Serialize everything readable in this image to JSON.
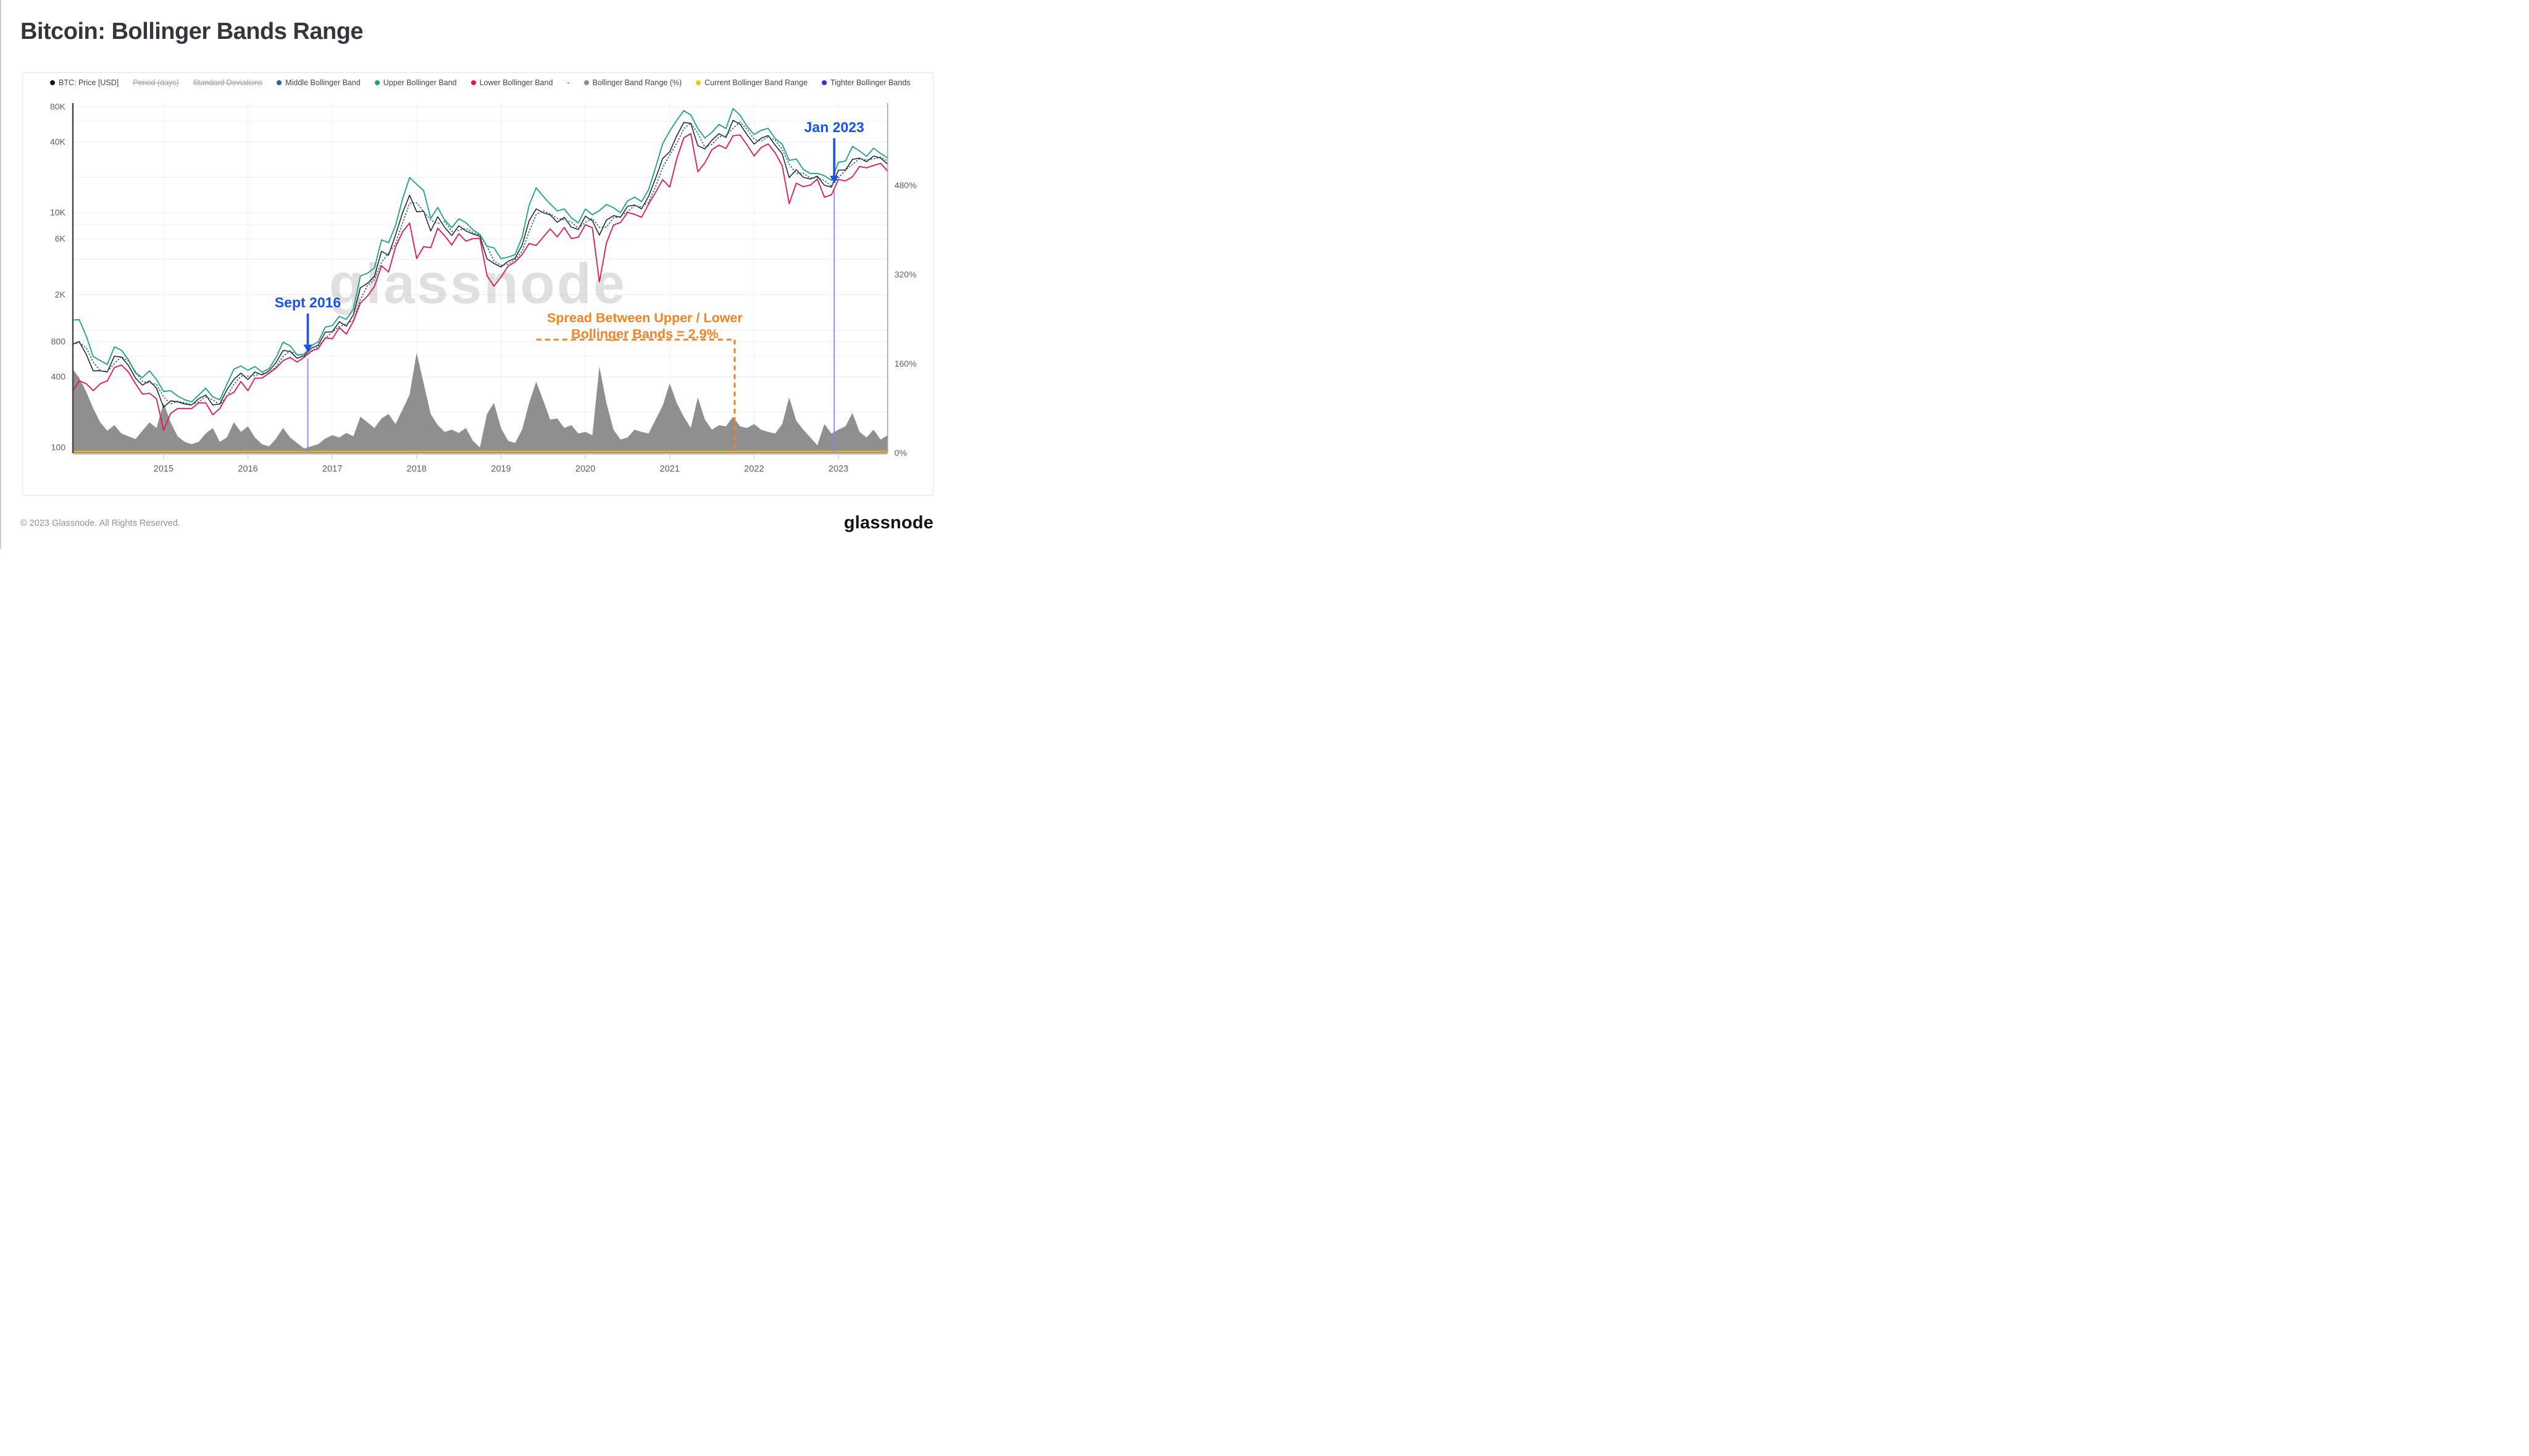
{
  "header": {
    "title": "Bitcoin: Bollinger Bands Range"
  },
  "legend": {
    "items": [
      {
        "id": "btc-price",
        "label": "BTC: Price [USD]",
        "dot": "#141414"
      },
      {
        "id": "period-days",
        "label": "Period (days)",
        "strike": true
      },
      {
        "id": "standard-deviations",
        "label": "Standard Deviations",
        "strike": true
      },
      {
        "id": "middle-bollinger-band",
        "label": "Middle Bollinger Band",
        "dot": "#2563a8"
      },
      {
        "id": "upper-bollinger-band",
        "label": "Upper Bollinger Band",
        "dot": "#16a57c"
      },
      {
        "id": "lower-bollinger-band",
        "label": "Lower Bollinger Band",
        "dot": "#ea134e"
      },
      {
        "id": "separator",
        "label": "-"
      },
      {
        "id": "bollinger-band-range",
        "label": "Bollinger Band Range (%)",
        "dot": "#8c8c8c"
      },
      {
        "id": "current-bollinger-band-range",
        "label": "Current Bollinger Band Range",
        "dot": "#f6c50d"
      },
      {
        "id": "tighter-bollinger-bands",
        "label": "Tighter Bollinger Bands",
        "dot": "#3130f2"
      }
    ]
  },
  "chart_data": {
    "type": "line",
    "title": "Bitcoin: Bollinger Bands Range",
    "watermark": "glassnode",
    "x_start_year": 2013.9167,
    "x_step_years": 0.0833333,
    "x_axis": {
      "tick_years": [
        2015,
        2016,
        2017,
        2018,
        2019,
        2020,
        2021,
        2022,
        2023
      ]
    },
    "y_left_axis": {
      "scale": "log",
      "unit": "USD",
      "ticks": [
        {
          "value": 80000,
          "label": "80K"
        },
        {
          "value": 40000,
          "label": "40K"
        },
        {
          "value": 10000,
          "label": "10K"
        },
        {
          "value": 6000,
          "label": "6K"
        },
        {
          "value": 2000,
          "label": "2K"
        },
        {
          "value": 800,
          "label": "800"
        },
        {
          "value": 400,
          "label": "400"
        },
        {
          "value": 100,
          "label": "100"
        }
      ],
      "gridlines": [
        100,
        200,
        400,
        600,
        800,
        1000,
        2000,
        4000,
        6000,
        8000,
        10000,
        20000,
        40000,
        60000,
        80000
      ],
      "range": [
        100,
        80000
      ]
    },
    "y_right_axis": {
      "scale": "linear",
      "unit": "%",
      "ticks": [
        {
          "value": 480,
          "label": "480%"
        },
        {
          "value": 320,
          "label": "320%"
        },
        {
          "value": 160,
          "label": "160%"
        },
        {
          "value": 0,
          "label": "0%"
        }
      ],
      "range": [
        0,
        625
      ]
    },
    "series": [
      {
        "name": "BTC: Price [USD]",
        "color": "#1c1c1c",
        "style": "solid",
        "axis": "left",
        "values": [
          760,
          800,
          620,
          450,
          450,
          440,
          600,
          590,
          500,
          390,
          340,
          370,
          320,
          220,
          250,
          245,
          235,
          230,
          260,
          280,
          230,
          235,
          310,
          380,
          430,
          380,
          440,
          415,
          450,
          530,
          670,
          660,
          575,
          605,
          700,
          745,
          960,
          970,
          1180,
          1080,
          1350,
          2300,
          2500,
          2875,
          4700,
          4350,
          6450,
          10000,
          14100,
          10200,
          10300,
          7000,
          9250,
          7500,
          6400,
          7750,
          7000,
          6600,
          6300,
          4050,
          3700,
          3450,
          3850,
          4100,
          5300,
          8550,
          10800,
          10000,
          9600,
          8300,
          9150,
          7550,
          7200,
          9350,
          8550,
          6450,
          8650,
          9450,
          9150,
          11350,
          11650,
          10800,
          13800,
          19700,
          29000,
          33100,
          45200,
          58800,
          57750,
          37300,
          35000,
          41500,
          47150,
          43800,
          61300,
          57000,
          46200,
          38500,
          43200,
          45500,
          37650,
          31800,
          19950,
          23300,
          20050,
          19400,
          20500,
          17150,
          16550,
          23100,
          23150,
          28500,
          29250,
          27200,
          30450,
          29200,
          26000
        ]
      },
      {
        "name": "Middle Bollinger Band",
        "color": "#2563a8",
        "style": "dotted",
        "axis": "left",
        "values": [
          760,
          780,
          710,
          535,
          450,
          445,
          520,
          595,
          545,
          445,
          365,
          355,
          345,
          270,
          235,
          248,
          240,
          232,
          245,
          270,
          255,
          232,
          272,
          345,
          405,
          405,
          410,
          428,
          432,
          490,
          600,
          665,
          618,
          590,
          652,
          722,
          852,
          965,
          1075,
          1130,
          1215,
          1825,
          2400,
          2690,
          3790,
          4525,
          5400,
          8225,
          12050,
          12150,
          10250,
          8650,
          8125,
          8375,
          6950,
          7075,
          7375,
          6800,
          6450,
          5175,
          3875,
          3575,
          3650,
          3975,
          4700,
          6925,
          9675,
          10400,
          9800,
          8950,
          8725,
          8350,
          7375,
          8275,
          8950,
          7500,
          7550,
          9050,
          9300,
          10250,
          11500,
          11225,
          12300,
          16750,
          24350,
          31050,
          39150,
          52000,
          58275,
          47525,
          36150,
          38250,
          44325,
          45475,
          52550,
          59150,
          51600,
          42350,
          40850,
          44350,
          41575,
          34725,
          25875,
          21625,
          21675,
          19725,
          19950,
          18825,
          16850,
          19825,
          23125,
          25825,
          28875,
          28225,
          28825,
          29825,
          27600
        ]
      },
      {
        "name": "Upper Bollinger Band",
        "color": "#16a57c",
        "style": "solid",
        "axis": "left",
        "values": [
          1220,
          1230,
          890,
          595,
          550,
          510,
          720,
          675,
          560,
          430,
          395,
          450,
          380,
          300,
          305,
          275,
          255,
          245,
          280,
          320,
          270,
          255,
          345,
          465,
          495,
          455,
          490,
          440,
          470,
          585,
          790,
          735,
          615,
          625,
          735,
          795,
          1060,
          1095,
          1310,
          1235,
          1510,
          2900,
          3050,
          3390,
          5870,
          5570,
          7790,
          13100,
          20000,
          17500,
          15450,
          8960,
          11100,
          8640,
          7480,
          8870,
          8260,
          7180,
          6550,
          5180,
          5030,
          4070,
          4190,
          4395,
          6190,
          11630,
          16330,
          13800,
          11900,
          10360,
          10800,
          9060,
          8210,
          10770,
          9640,
          10450,
          11760,
          11040,
          10030,
          12620,
          13610,
          12440,
          15730,
          24430,
          38860,
          49650,
          61470,
          74090,
          68150,
          52220,
          43400,
          48470,
          56580,
          52210,
          77240,
          67940,
          54520,
          46510,
          50460,
          52420,
          42920,
          38410,
          27930,
          28710,
          23420,
          21570,
          21650,
          20720,
          18870,
          26980,
          27600,
          36710,
          33700,
          30250,
          35570,
          32000,
          29330
        ]
      },
      {
        "name": "Lower Bollinger Band",
        "color": "#ea134e",
        "style": "solid",
        "axis": "left",
        "values": [
          304,
          370,
          350,
          305,
          350,
          370,
          480,
          505,
          440,
          350,
          285,
          290,
          260,
          140,
          195,
          215,
          215,
          215,
          240,
          240,
          190,
          215,
          275,
          295,
          365,
          305,
          390,
          390,
          430,
          475,
          550,
          585,
          535,
          585,
          665,
          695,
          860,
          845,
          1050,
          925,
          1190,
          1700,
          1950,
          2360,
          3530,
          3130,
          5110,
          6880,
          8180,
          4080,
          5150,
          5040,
          7400,
          6360,
          5325,
          6635,
          5740,
          6020,
          6050,
          2915,
          2370,
          2830,
          3510,
          3805,
          4410,
          5470,
          5270,
          6200,
          7295,
          6240,
          7500,
          6040,
          6190,
          7930,
          7455,
          2580,
          5535,
          7860,
          8270,
          10080,
          9695,
          9160,
          11870,
          14970,
          19140,
          16550,
          28930,
          43510,
          47355,
          22380,
          26600,
          34530,
          37720,
          35390,
          45360,
          46060,
          37880,
          30490,
          35940,
          38580,
          32380,
          25190,
          11970,
          17895,
          16680,
          17230,
          19350,
          13580,
          14230,
          19220,
          18700,
          20290,
          24800,
          24150,
          25330,
          26400,
          22670
        ]
      },
      {
        "name": "Bollinger Band Range (%)",
        "color": "#8f8f8f",
        "type": "area",
        "axis": "right",
        "values": [
          150,
          135,
          110,
          80,
          55,
          40,
          50,
          35,
          30,
          25,
          40,
          55,
          45,
          90,
          55,
          30,
          20,
          16,
          20,
          35,
          45,
          20,
          28,
          55,
          38,
          48,
          28,
          16,
          12,
          26,
          45,
          28,
          18,
          8,
          12,
          16,
          26,
          32,
          28,
          36,
          30,
          65,
          55,
          45,
          62,
          70,
          52,
          78,
          105,
          180,
          125,
          70,
          50,
          38,
          42,
          36,
          45,
          22,
          10,
          70,
          90,
          45,
          22,
          18,
          42,
          90,
          128,
          95,
          60,
          62,
          45,
          50,
          35,
          38,
          32,
          155,
          90,
          42,
          24,
          28,
          42,
          38,
          35,
          60,
          85,
          125,
          90,
          65,
          45,
          100,
          60,
          42,
          50,
          48,
          65,
          48,
          45,
          52,
          42,
          38,
          35,
          52,
          100,
          58,
          42,
          28,
          14,
          52,
          35,
          42,
          48,
          72,
          38,
          28,
          42,
          24,
          32
        ]
      }
    ],
    "current_bollinger_band_range_pct": 2.9,
    "annotations": {
      "tight_band_markers": [
        {
          "label": "Sept 2016",
          "year": 2016.71,
          "price_usd": 605
        },
        {
          "label": "Jan 2023",
          "year": 2022.95,
          "price_usd": 16600
        }
      ],
      "marker_color": "#1552f0",
      "marker_line_color": "#8a88ef",
      "spread_callout": {
        "line1": "Spread Between Upper / Lower",
        "line2": "Bollinger Bands = 2.9%",
        "spread_pct": 2.9,
        "color": "#f5821f",
        "bracket": {
          "x_start_year": 2019.42,
          "x_end_year": 2021.77,
          "y_value_usd": 830
        }
      }
    }
  },
  "footer": {
    "copyright": "© 2023 Glassnode. All Rights Reserved.",
    "brand": "glassnode"
  }
}
